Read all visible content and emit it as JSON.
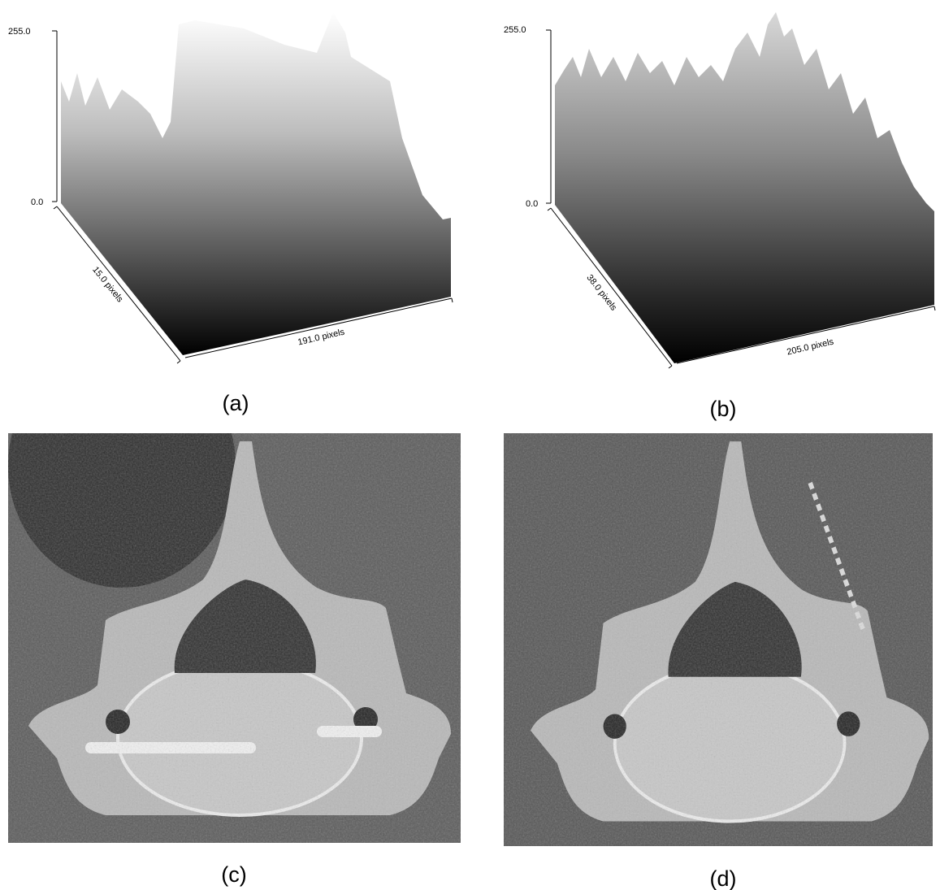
{
  "panels": [
    {
      "label": "(a)",
      "z_max": "255.0",
      "z_min": "0.0",
      "depth_label": "15.0 pixels",
      "width_label": "191.0 pixels"
    },
    {
      "label": "(b)",
      "z_max": "255.0",
      "z_min": "0.0",
      "depth_label": "38.0 pixels",
      "width_label": "205.0 pixels"
    },
    {
      "label": "(c)"
    },
    {
      "label": "(d)"
    }
  ]
}
